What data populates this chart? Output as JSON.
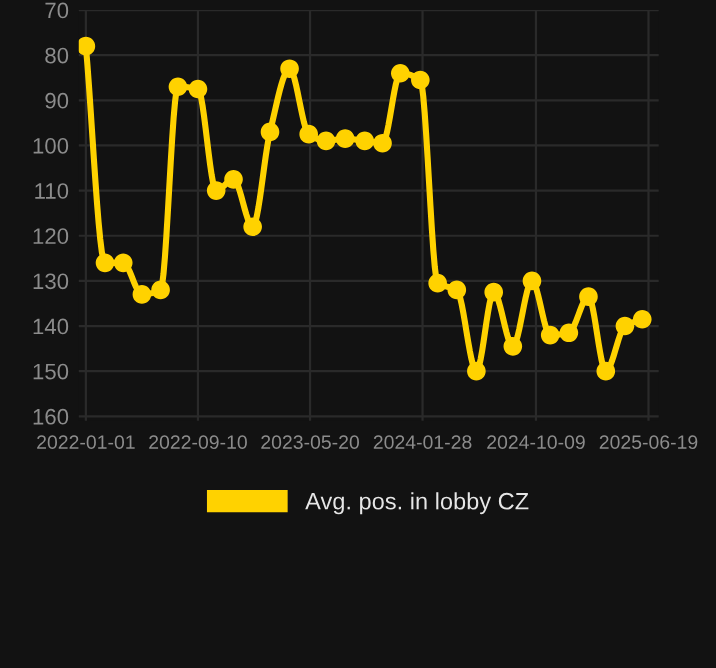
{
  "chart_data": {
    "type": "line",
    "x": [
      "2022-01-01",
      "2022-02-13",
      "2022-03-26",
      "2022-05-07",
      "2022-06-18",
      "2022-07-27",
      "2022-09-10",
      "2022-10-21",
      "2022-11-29",
      "2023-01-11",
      "2023-02-19",
      "2023-04-04",
      "2023-05-17",
      "2023-06-25",
      "2023-08-07",
      "2023-09-20",
      "2023-10-30",
      "2023-12-09",
      "2024-01-23",
      "2024-03-02",
      "2024-04-14",
      "2024-05-28",
      "2024-07-06",
      "2024-08-18",
      "2024-09-30",
      "2024-11-10",
      "2024-12-22",
      "2025-02-04",
      "2025-03-15",
      "2025-04-27",
      "2025-06-05"
    ],
    "series": [
      {
        "name": "Avg. pos. in lobby CZ",
        "color": "#ffd200",
        "values": [
          78,
          126,
          126,
          133,
          132,
          87,
          87.5,
          110,
          107.5,
          118,
          97,
          83,
          97.5,
          99,
          98.5,
          99,
          99.5,
          84,
          85.5,
          130.5,
          132,
          150,
          132.5,
          144.5,
          130,
          142,
          141.5,
          133.5,
          150,
          140,
          138.5
        ]
      }
    ],
    "ylim": [
      161,
      70
    ],
    "yticks": [
      70,
      80,
      90,
      100,
      110,
      120,
      130,
      140,
      150,
      160
    ],
    "xlim": [
      "2021-12-16",
      "2025-07-12"
    ],
    "xticks": [
      "2022-01-01",
      "2022-09-10",
      "2023-05-20",
      "2024-01-28",
      "2024-10-09",
      "2025-06-19"
    ],
    "grid": true,
    "legend": "bottom",
    "marker": "circle",
    "line_style": "solid"
  }
}
